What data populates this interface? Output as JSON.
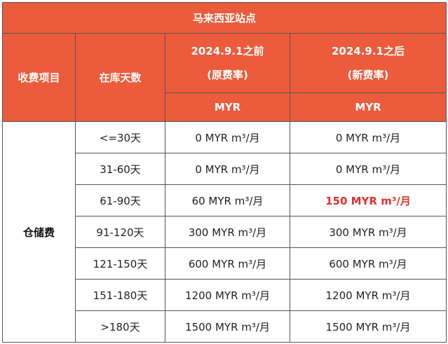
{
  "title": "马来西亚站点",
  "headers": {
    "item": "收费项目",
    "days": "在库天数",
    "old_date": "2024.9.1之前",
    "old_note": "(原费率)",
    "new_date": "2024.9.1之后",
    "new_note": "(新费率)",
    "old_unit": "MYR",
    "new_unit": "MYR"
  },
  "category": "仓储费",
  "rows": [
    {
      "days": "<=30天",
      "old": "0 MYR m³/月",
      "new": "0 MYR m³/月"
    },
    {
      "days": "31-60天",
      "old": "0 MYR m³/月",
      "new": "0 MYR m³/月"
    },
    {
      "days": "61-90天",
      "old": "60 MYR m³/月",
      "new": "150 MYR m³/月"
    },
    {
      "days": "91-120天",
      "old": "300 MYR m³/月",
      "new": "300 MYR m³/月"
    },
    {
      "days": "121-150天",
      "old": "600 MYR m³/月",
      "new": "600 MYR m³/月"
    },
    {
      "days": "151-180天",
      "old": "1200 MYR m³/月",
      "new": "1200 MYR m³/月"
    },
    {
      "days": ">180天",
      "old": "1500 MYR m³/月",
      "new": "1500 MYR m³/月"
    }
  ],
  "colors": {
    "header_bg": "#ec5b3c",
    "highlight": "#e0322a"
  }
}
